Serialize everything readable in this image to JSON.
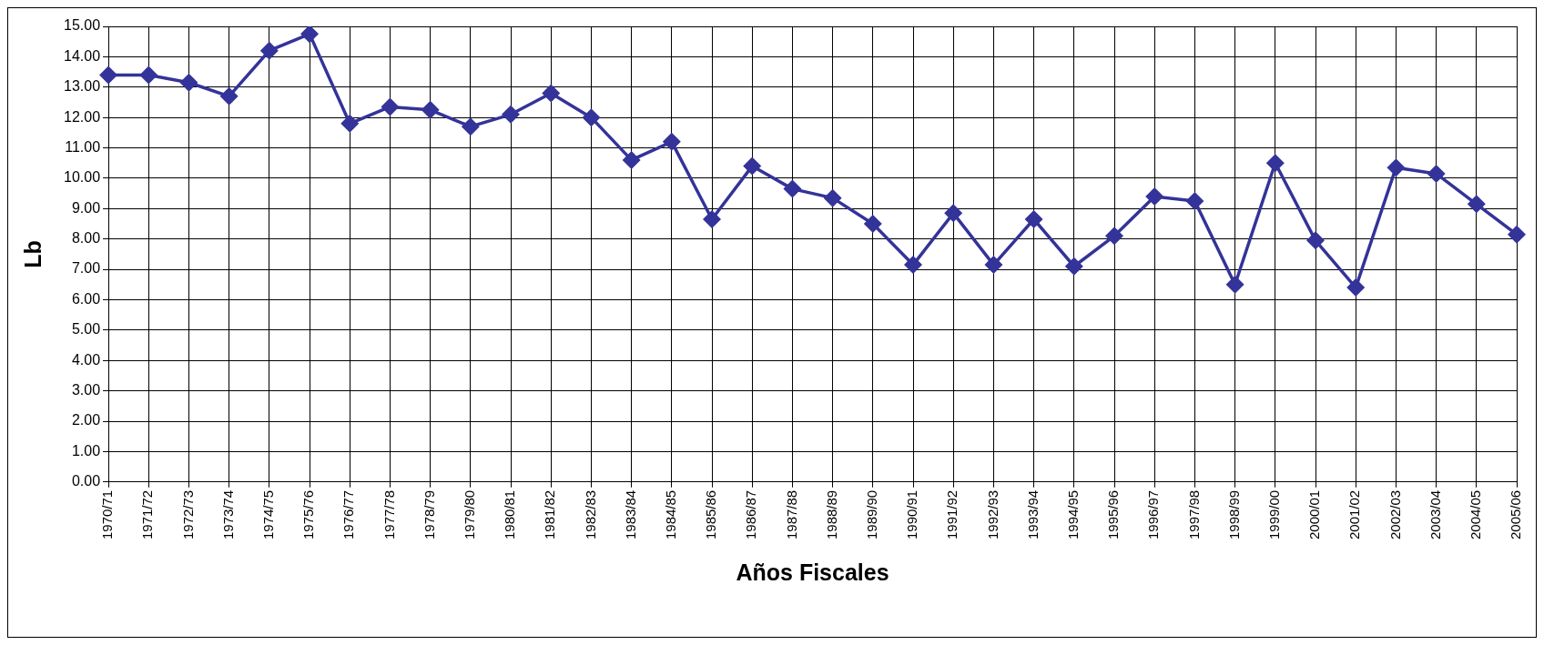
{
  "chart_data": {
    "type": "line",
    "xlabel": "Años Fiscales",
    "ylabel": "Lb",
    "categories": [
      "1970/71",
      "1971/72",
      "1972/73",
      "1973/74",
      "1974/75",
      "1975/76",
      "1976/77",
      "1977/78",
      "1978/79",
      "1979/80",
      "1980/81",
      "1981/82",
      "1982/83",
      "1983/84",
      "1984/85",
      "1985/86",
      "1986/87",
      "1987/88",
      "1988/89",
      "1989/90",
      "1990/91",
      "1991/92",
      "1992/93",
      "1993/94",
      "1994/95",
      "1995/96",
      "1996/97",
      "1997/98",
      "1998/99",
      "1999/00",
      "2000/01",
      "2001/02",
      "2002/03",
      "2003/04",
      "2004/05",
      "2005/06"
    ],
    "series": [
      {
        "color": "#333399",
        "values": [
          13.4,
          13.4,
          13.15,
          12.7,
          14.2,
          14.75,
          11.8,
          12.35,
          12.25,
          11.7,
          12.1,
          12.8,
          12.0,
          10.6,
          11.2,
          8.65,
          10.4,
          9.65,
          9.35,
          8.5,
          7.15,
          8.85,
          7.15,
          8.65,
          7.1,
          8.1,
          9.4,
          9.25,
          6.5,
          10.5,
          7.95,
          6.4,
          10.35,
          10.15,
          9.15,
          8.15
        ]
      }
    ],
    "ylim": [
      0,
      15
    ],
    "yticks": [
      {
        "value": 0,
        "label": "0.00"
      },
      {
        "value": 1,
        "label": "1.00"
      },
      {
        "value": 2,
        "label": "2.00"
      },
      {
        "value": 3,
        "label": "3.00"
      },
      {
        "value": 4,
        "label": "4.00"
      },
      {
        "value": 5,
        "label": "5.00"
      },
      {
        "value": 6,
        "label": "6.00"
      },
      {
        "value": 7,
        "label": "7.00"
      },
      {
        "value": 8,
        "label": "8.00"
      },
      {
        "value": 9,
        "label": "9.00"
      },
      {
        "value": 10,
        "label": "10.00"
      },
      {
        "value": 11,
        "label": "11.00"
      },
      {
        "value": 12,
        "label": "12.00"
      },
      {
        "value": 13,
        "label": "13.00"
      },
      {
        "value": 14,
        "label": "14.00"
      },
      {
        "value": 15,
        "label": "15.00"
      }
    ],
    "grid": true,
    "legend": false,
    "marker": "diamond",
    "line_style": "solid"
  }
}
